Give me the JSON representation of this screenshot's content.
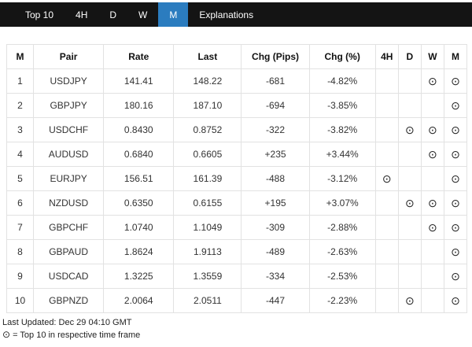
{
  "nav": {
    "items": [
      {
        "label": "Top 10",
        "active": false
      },
      {
        "label": "4H",
        "active": false
      },
      {
        "label": "D",
        "active": false
      },
      {
        "label": "W",
        "active": false
      },
      {
        "label": "M",
        "active": true
      },
      {
        "label": "Explanations",
        "active": false
      }
    ],
    "active_bg": "#2b7cbf",
    "bar_bg": "#141414"
  },
  "table": {
    "headers": [
      "M",
      "Pair",
      "Rate",
      "Last",
      "Chg (Pips)",
      "Chg (%)",
      "4H",
      "D",
      "W",
      "M"
    ],
    "rows": [
      {
        "rank": "1",
        "pair": "USDJPY",
        "rate": "141.41",
        "last": "148.22",
        "chg_pips": "-681",
        "chg_pct": "-4.82%",
        "tf": {
          "h4": false,
          "d": false,
          "w": true,
          "m": true
        }
      },
      {
        "rank": "2",
        "pair": "GBPJPY",
        "rate": "180.16",
        "last": "187.10",
        "chg_pips": "-694",
        "chg_pct": "-3.85%",
        "tf": {
          "h4": false,
          "d": false,
          "w": false,
          "m": true
        }
      },
      {
        "rank": "3",
        "pair": "USDCHF",
        "rate": "0.8430",
        "last": "0.8752",
        "chg_pips": "-322",
        "chg_pct": "-3.82%",
        "tf": {
          "h4": false,
          "d": true,
          "w": true,
          "m": true
        }
      },
      {
        "rank": "4",
        "pair": "AUDUSD",
        "rate": "0.6840",
        "last": "0.6605",
        "chg_pips": "+235",
        "chg_pct": "+3.44%",
        "tf": {
          "h4": false,
          "d": false,
          "w": true,
          "m": true
        }
      },
      {
        "rank": "5",
        "pair": "EURJPY",
        "rate": "156.51",
        "last": "161.39",
        "chg_pips": "-488",
        "chg_pct": "-3.12%",
        "tf": {
          "h4": true,
          "d": false,
          "w": false,
          "m": true
        }
      },
      {
        "rank": "6",
        "pair": "NZDUSD",
        "rate": "0.6350",
        "last": "0.6155",
        "chg_pips": "+195",
        "chg_pct": "+3.07%",
        "tf": {
          "h4": false,
          "d": true,
          "w": true,
          "m": true
        }
      },
      {
        "rank": "7",
        "pair": "GBPCHF",
        "rate": "1.0740",
        "last": "1.1049",
        "chg_pips": "-309",
        "chg_pct": "-2.88%",
        "tf": {
          "h4": false,
          "d": false,
          "w": true,
          "m": true
        }
      },
      {
        "rank": "8",
        "pair": "GBPAUD",
        "rate": "1.8624",
        "last": "1.9113",
        "chg_pips": "-489",
        "chg_pct": "-2.63%",
        "tf": {
          "h4": false,
          "d": false,
          "w": false,
          "m": true
        }
      },
      {
        "rank": "9",
        "pair": "USDCAD",
        "rate": "1.3225",
        "last": "1.3559",
        "chg_pips": "-334",
        "chg_pct": "-2.53%",
        "tf": {
          "h4": false,
          "d": false,
          "w": false,
          "m": true
        }
      },
      {
        "rank": "10",
        "pair": "GBPNZD",
        "rate": "2.0064",
        "last": "2.0511",
        "chg_pips": "-447",
        "chg_pct": "-2.23%",
        "tf": {
          "h4": false,
          "d": true,
          "w": false,
          "m": true
        }
      }
    ]
  },
  "icons": {
    "top10": "⊙"
  },
  "footer": {
    "last_updated": "Last Updated: Dec 29 04:10 GMT",
    "legend_text": "= Top 10 in respective time frame"
  }
}
